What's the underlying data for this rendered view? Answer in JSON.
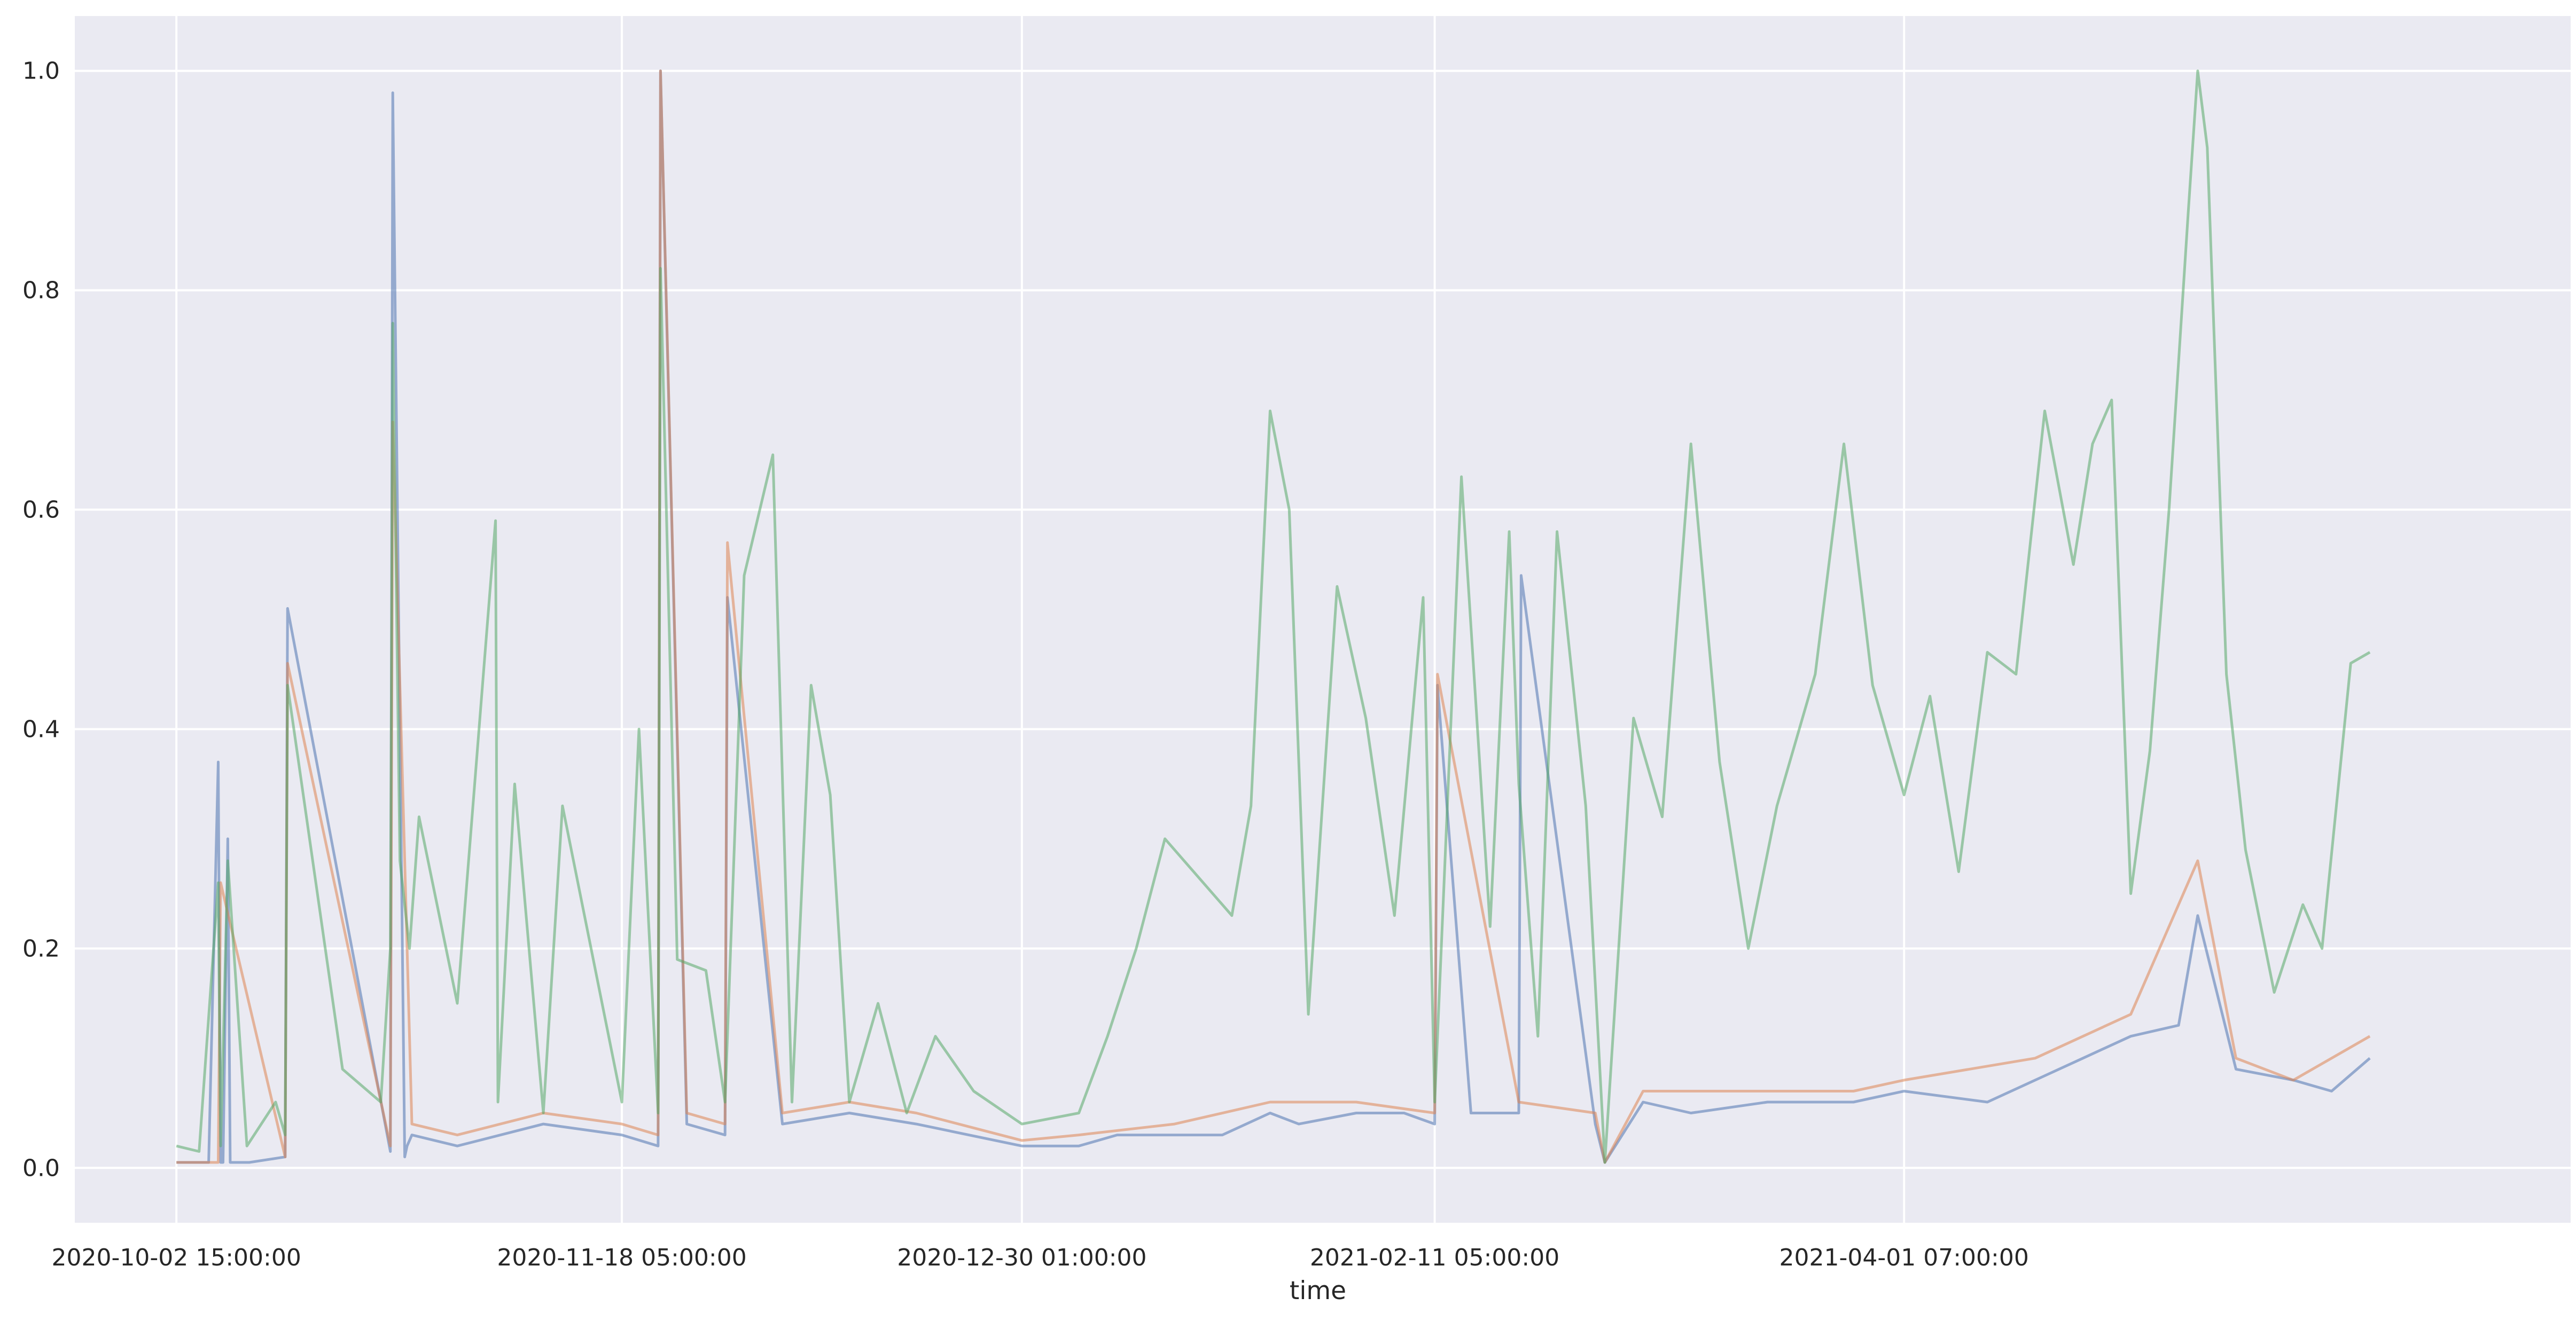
{
  "chart_data": {
    "type": "line",
    "title": "",
    "xlabel": "time",
    "ylabel": "",
    "ylim": [
      -0.05,
      1.05
    ],
    "y_ticks": [
      0.0,
      0.2,
      0.4,
      0.6,
      0.8,
      1.0
    ],
    "y_tick_labels": [
      "0.0",
      "0.2",
      "0.4",
      "0.6",
      "0.8",
      "1.0"
    ],
    "x_range": [
      "2020-09-22 00:00:00",
      "2021-06-10 00:00:00"
    ],
    "x_ticks": [
      "2020-10-02 15:00:00",
      "2020-11-18 05:00:00",
      "2020-12-30 01:00:00",
      "2021-02-11 05:00:00",
      "2021-04-01 07:00:00"
    ],
    "grid": true,
    "legend": "none",
    "background": "#eaeaf2",
    "series": [
      {
        "color": "#4c72b0",
        "x": [
          "2020-10-02 15:00:00",
          "2020-10-06 00:00:00",
          "2020-10-07 00:00:00",
          "2020-10-07 06:00:00",
          "2020-10-07 12:00:00",
          "2020-10-08 00:00:00",
          "2020-10-08 06:00:00",
          "2020-10-10 00:00:00",
          "2020-10-10 06:00:00",
          "2020-10-14 00:00:00",
          "2020-10-14 06:00:00",
          "2020-10-25 00:00:00",
          "2020-10-25 06:00:00",
          "2020-10-26 12:00:00",
          "2020-10-26 18:00:00",
          "2020-10-27 06:00:00",
          "2020-11-01 00:00:00",
          "2020-11-10 00:00:00",
          "2020-11-18 05:00:00",
          "2020-11-22 00:00:00",
          "2020-11-22 06:00:00",
          "2020-11-25 00:00:00",
          "2020-11-29 00:00:00",
          "2020-11-29 06:00:00",
          "2020-12-05 00:00:00",
          "2020-12-12 00:00:00",
          "2020-12-19 00:00:00",
          "2020-12-30 01:00:00",
          "2021-01-05 00:00:00",
          "2021-01-09 00:00:00",
          "2021-01-15 00:00:00",
          "2021-01-20 00:00:00",
          "2021-01-25 00:00:00",
          "2021-01-28 00:00:00",
          "2021-02-03 00:00:00",
          "2021-02-08 00:00:00",
          "2021-02-11 05:00:00",
          "2021-02-11 12:00:00",
          "2021-02-15 00:00:00",
          "2021-02-20 00:00:00",
          "2021-02-20 06:00:00",
          "2021-02-28 00:00:00",
          "2021-03-01 00:00:00",
          "2021-03-05 00:00:00",
          "2021-03-10 00:00:00",
          "2021-03-18 00:00:00",
          "2021-03-27 00:00:00",
          "2021-04-01 07:00:00",
          "2021-04-10 00:00:00",
          "2021-04-15 00:00:00",
          "2021-04-20 00:00:00",
          "2021-04-25 00:00:00",
          "2021-04-30 00:00:00",
          "2021-05-02 00:00:00",
          "2021-05-06 00:00:00",
          "2021-05-12 00:00:00",
          "2021-05-16 00:00:00",
          "2021-05-20 00:00:00"
        ],
        "values": [
          0.005,
          0.005,
          0.37,
          0.005,
          0.005,
          0.3,
          0.005,
          0.005,
          0.005,
          0.01,
          0.51,
          0.015,
          0.98,
          0.01,
          0.02,
          0.03,
          0.02,
          0.04,
          0.03,
          0.02,
          1.0,
          0.04,
          0.03,
          0.52,
          0.04,
          0.05,
          0.04,
          0.02,
          0.02,
          0.03,
          0.03,
          0.03,
          0.05,
          0.04,
          0.05,
          0.05,
          0.04,
          0.44,
          0.05,
          0.05,
          0.54,
          0.04,
          0.005,
          0.06,
          0.05,
          0.06,
          0.06,
          0.07,
          0.06,
          0.08,
          0.1,
          0.12,
          0.13,
          0.23,
          0.09,
          0.08,
          0.07,
          0.1
        ]
      },
      {
        "color": "#dd8452",
        "x": [
          "2020-10-02 15:00:00",
          "2020-10-07 00:00:00",
          "2020-10-07 06:00:00",
          "2020-10-14 00:00:00",
          "2020-10-14 06:00:00",
          "2020-10-25 00:00:00",
          "2020-10-25 06:00:00",
          "2020-10-27 06:00:00",
          "2020-11-01 00:00:00",
          "2020-11-10 00:00:00",
          "2020-11-18 05:00:00",
          "2020-11-22 00:00:00",
          "2020-11-22 06:00:00",
          "2020-11-25 00:00:00",
          "2020-11-29 00:00:00",
          "2020-11-29 06:00:00",
          "2020-12-05 00:00:00",
          "2020-12-12 00:00:00",
          "2020-12-19 00:00:00",
          "2020-12-30 01:00:00",
          "2021-01-05 00:00:00",
          "2021-01-15 00:00:00",
          "2021-01-25 00:00:00",
          "2021-02-03 00:00:00",
          "2021-02-11 05:00:00",
          "2021-02-11 12:00:00",
          "2021-02-20 00:00:00",
          "2021-02-28 00:00:00",
          "2021-03-01 00:00:00",
          "2021-03-05 00:00:00",
          "2021-03-18 00:00:00",
          "2021-03-27 00:00:00",
          "2021-04-01 07:00:00",
          "2021-04-15 00:00:00",
          "2021-04-25 00:00:00",
          "2021-05-02 00:00:00",
          "2021-05-06 00:00:00",
          "2021-05-12 00:00:00",
          "2021-05-20 00:00:00"
        ],
        "values": [
          0.005,
          0.005,
          0.26,
          0.01,
          0.46,
          0.02,
          0.68,
          0.04,
          0.03,
          0.05,
          0.04,
          0.03,
          1.0,
          0.05,
          0.04,
          0.57,
          0.05,
          0.06,
          0.05,
          0.025,
          0.03,
          0.04,
          0.06,
          0.06,
          0.05,
          0.45,
          0.06,
          0.05,
          0.005,
          0.07,
          0.07,
          0.07,
          0.08,
          0.1,
          0.14,
          0.28,
          0.1,
          0.08,
          0.12
        ]
      },
      {
        "color": "#55a868",
        "x": [
          "2020-10-02 15:00:00",
          "2020-10-05 00:00:00",
          "2020-10-07 00:00:00",
          "2020-10-07 06:00:00",
          "2020-10-08 00:00:00",
          "2020-10-10 00:00:00",
          "2020-10-13 00:00:00",
          "2020-10-14 00:00:00",
          "2020-10-14 06:00:00",
          "2020-10-20 00:00:00",
          "2020-10-24 00:00:00",
          "2020-10-25 00:00:00",
          "2020-10-25 06:00:00",
          "2020-10-26 00:00:00",
          "2020-10-27 00:00:00",
          "2020-10-28 00:00:00",
          "2020-11-01 00:00:00",
          "2020-11-05 00:00:00",
          "2020-11-05 06:00:00",
          "2020-11-07 00:00:00",
          "2020-11-10 00:00:00",
          "2020-11-12 00:00:00",
          "2020-11-18 05:00:00",
          "2020-11-20 00:00:00",
          "2020-11-22 00:00:00",
          "2020-11-22 06:00:00",
          "2020-11-24 00:00:00",
          "2020-11-27 00:00:00",
          "2020-11-29 00:00:00",
          "2020-12-01 00:00:00",
          "2020-12-04 00:00:00",
          "2020-12-06 00:00:00",
          "2020-12-08 00:00:00",
          "2020-12-10 00:00:00",
          "2020-12-12 00:00:00",
          "2020-12-15 00:00:00",
          "2020-12-18 00:00:00",
          "2020-12-21 00:00:00",
          "2020-12-25 00:00:00",
          "2020-12-30 01:00:00",
          "2021-01-05 00:00:00",
          "2021-01-08 00:00:00",
          "2021-01-11 00:00:00",
          "2021-01-14 00:00:00",
          "2021-01-17 00:00:00",
          "2021-01-21 00:00:00",
          "2021-01-23 00:00:00",
          "2021-01-25 00:00:00",
          "2021-01-27 00:00:00",
          "2021-01-29 00:00:00",
          "2021-02-01 00:00:00",
          "2021-02-04 00:00:00",
          "2021-02-07 00:00:00",
          "2021-02-10 00:00:00",
          "2021-02-11 05:00:00",
          "2021-02-14 00:00:00",
          "2021-02-17 00:00:00",
          "2021-02-19 00:00:00",
          "2021-02-20 00:00:00",
          "2021-02-22 00:00:00",
          "2021-02-24 00:00:00",
          "2021-02-27 00:00:00",
          "2021-03-01 00:00:00",
          "2021-03-04 00:00:00",
          "2021-03-07 00:00:00",
          "2021-03-10 00:00:00",
          "2021-03-13 00:00:00",
          "2021-03-16 00:00:00",
          "2021-03-19 00:00:00",
          "2021-03-23 00:00:00",
          "2021-03-26 00:00:00",
          "2021-03-29 00:00:00",
          "2021-04-01 07:00:00",
          "2021-04-04 00:00:00",
          "2021-04-07 00:00:00",
          "2021-04-10 00:00:00",
          "2021-04-13 00:00:00",
          "2021-04-16 00:00:00",
          "2021-04-19 00:00:00",
          "2021-04-21 00:00:00",
          "2021-04-23 00:00:00",
          "2021-04-25 00:00:00",
          "2021-04-27 00:00:00",
          "2021-04-29 00:00:00",
          "2021-05-01 00:00:00",
          "2021-05-02 00:00:00",
          "2021-05-03 00:00:00",
          "2021-05-05 00:00:00",
          "2021-05-07 00:00:00",
          "2021-05-10 00:00:00",
          "2021-05-13 00:00:00",
          "2021-05-15 00:00:00",
          "2021-05-18 00:00:00",
          "2021-05-20 00:00:00"
        ],
        "values": [
          0.02,
          0.015,
          0.26,
          0.02,
          0.28,
          0.02,
          0.06,
          0.03,
          0.44,
          0.09,
          0.06,
          0.2,
          0.77,
          0.28,
          0.2,
          0.32,
          0.15,
          0.59,
          0.06,
          0.35,
          0.05,
          0.33,
          0.06,
          0.4,
          0.05,
          0.82,
          0.19,
          0.18,
          0.06,
          0.54,
          0.65,
          0.06,
          0.44,
          0.34,
          0.06,
          0.15,
          0.05,
          0.12,
          0.07,
          0.04,
          0.05,
          0.12,
          0.2,
          0.3,
          0.27,
          0.23,
          0.33,
          0.69,
          0.6,
          0.14,
          0.53,
          0.41,
          0.23,
          0.52,
          0.06,
          0.63,
          0.22,
          0.58,
          0.35,
          0.12,
          0.58,
          0.33,
          0.005,
          0.41,
          0.32,
          0.66,
          0.37,
          0.2,
          0.33,
          0.45,
          0.66,
          0.44,
          0.34,
          0.43,
          0.27,
          0.47,
          0.45,
          0.69,
          0.55,
          0.66,
          0.7,
          0.25,
          0.38,
          0.6,
          0.87,
          1.0,
          0.93,
          0.45,
          0.29,
          0.16,
          0.24,
          0.2,
          0.46,
          0.47
        ]
      }
    ]
  }
}
